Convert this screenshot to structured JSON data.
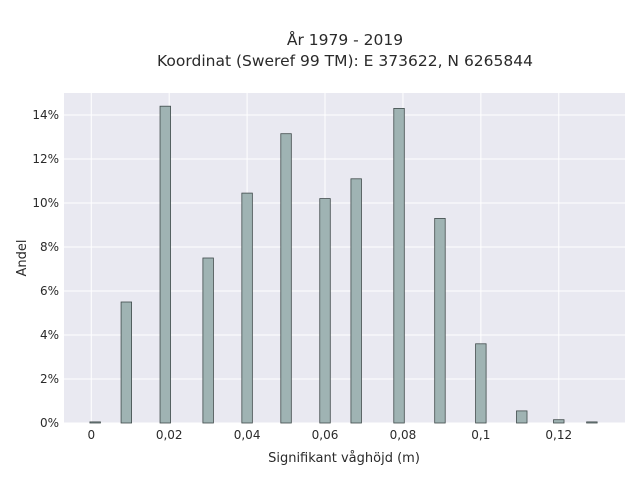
{
  "chart_data": {
    "type": "bar",
    "title_line1": "År 1979 - 2019",
    "title_line2": "Koordinat (Sweref 99 TM): E 373622, N 6265844",
    "xlabel": "Signifikant våghöjd (m)",
    "ylabel": "Andel",
    "xlim": [
      -0.007,
      0.137
    ],
    "ylim": [
      0,
      15
    ],
    "x_ticks": [
      {
        "value": 0,
        "label": "0"
      },
      {
        "value": 0.02,
        "label": "0,02"
      },
      {
        "value": 0.04,
        "label": "0,04"
      },
      {
        "value": 0.06,
        "label": "0,06"
      },
      {
        "value": 0.08,
        "label": "0,08"
      },
      {
        "value": 0.1,
        "label": "0,1"
      },
      {
        "value": 0.12,
        "label": "0,12"
      }
    ],
    "y_ticks": [
      {
        "value": 0,
        "label": "0%"
      },
      {
        "value": 2,
        "label": "2%"
      },
      {
        "value": 4,
        "label": "4%"
      },
      {
        "value": 6,
        "label": "6%"
      },
      {
        "value": 8,
        "label": "8%"
      },
      {
        "value": 10,
        "label": "10%"
      },
      {
        "value": 12,
        "label": "12%"
      },
      {
        "value": 14,
        "label": "14%"
      }
    ],
    "bar_width": 0.0027,
    "x": [
      0.001,
      0.009,
      0.019,
      0.03,
      0.04,
      0.05,
      0.06,
      0.068,
      0.079,
      0.0895,
      0.1,
      0.1105,
      0.12,
      0.1285
    ],
    "values": [
      0.05,
      5.5,
      14.4,
      7.5,
      10.45,
      13.15,
      10.2,
      11.1,
      14.3,
      9.3,
      3.6,
      0.55,
      0.15,
      0.05
    ],
    "grid": true,
    "colors": {
      "plot_bg": "#e9e9f1",
      "grid": "#ffffff",
      "bar_fill": "#9fb3b3",
      "bar_stroke": "#3f4a4a"
    }
  }
}
